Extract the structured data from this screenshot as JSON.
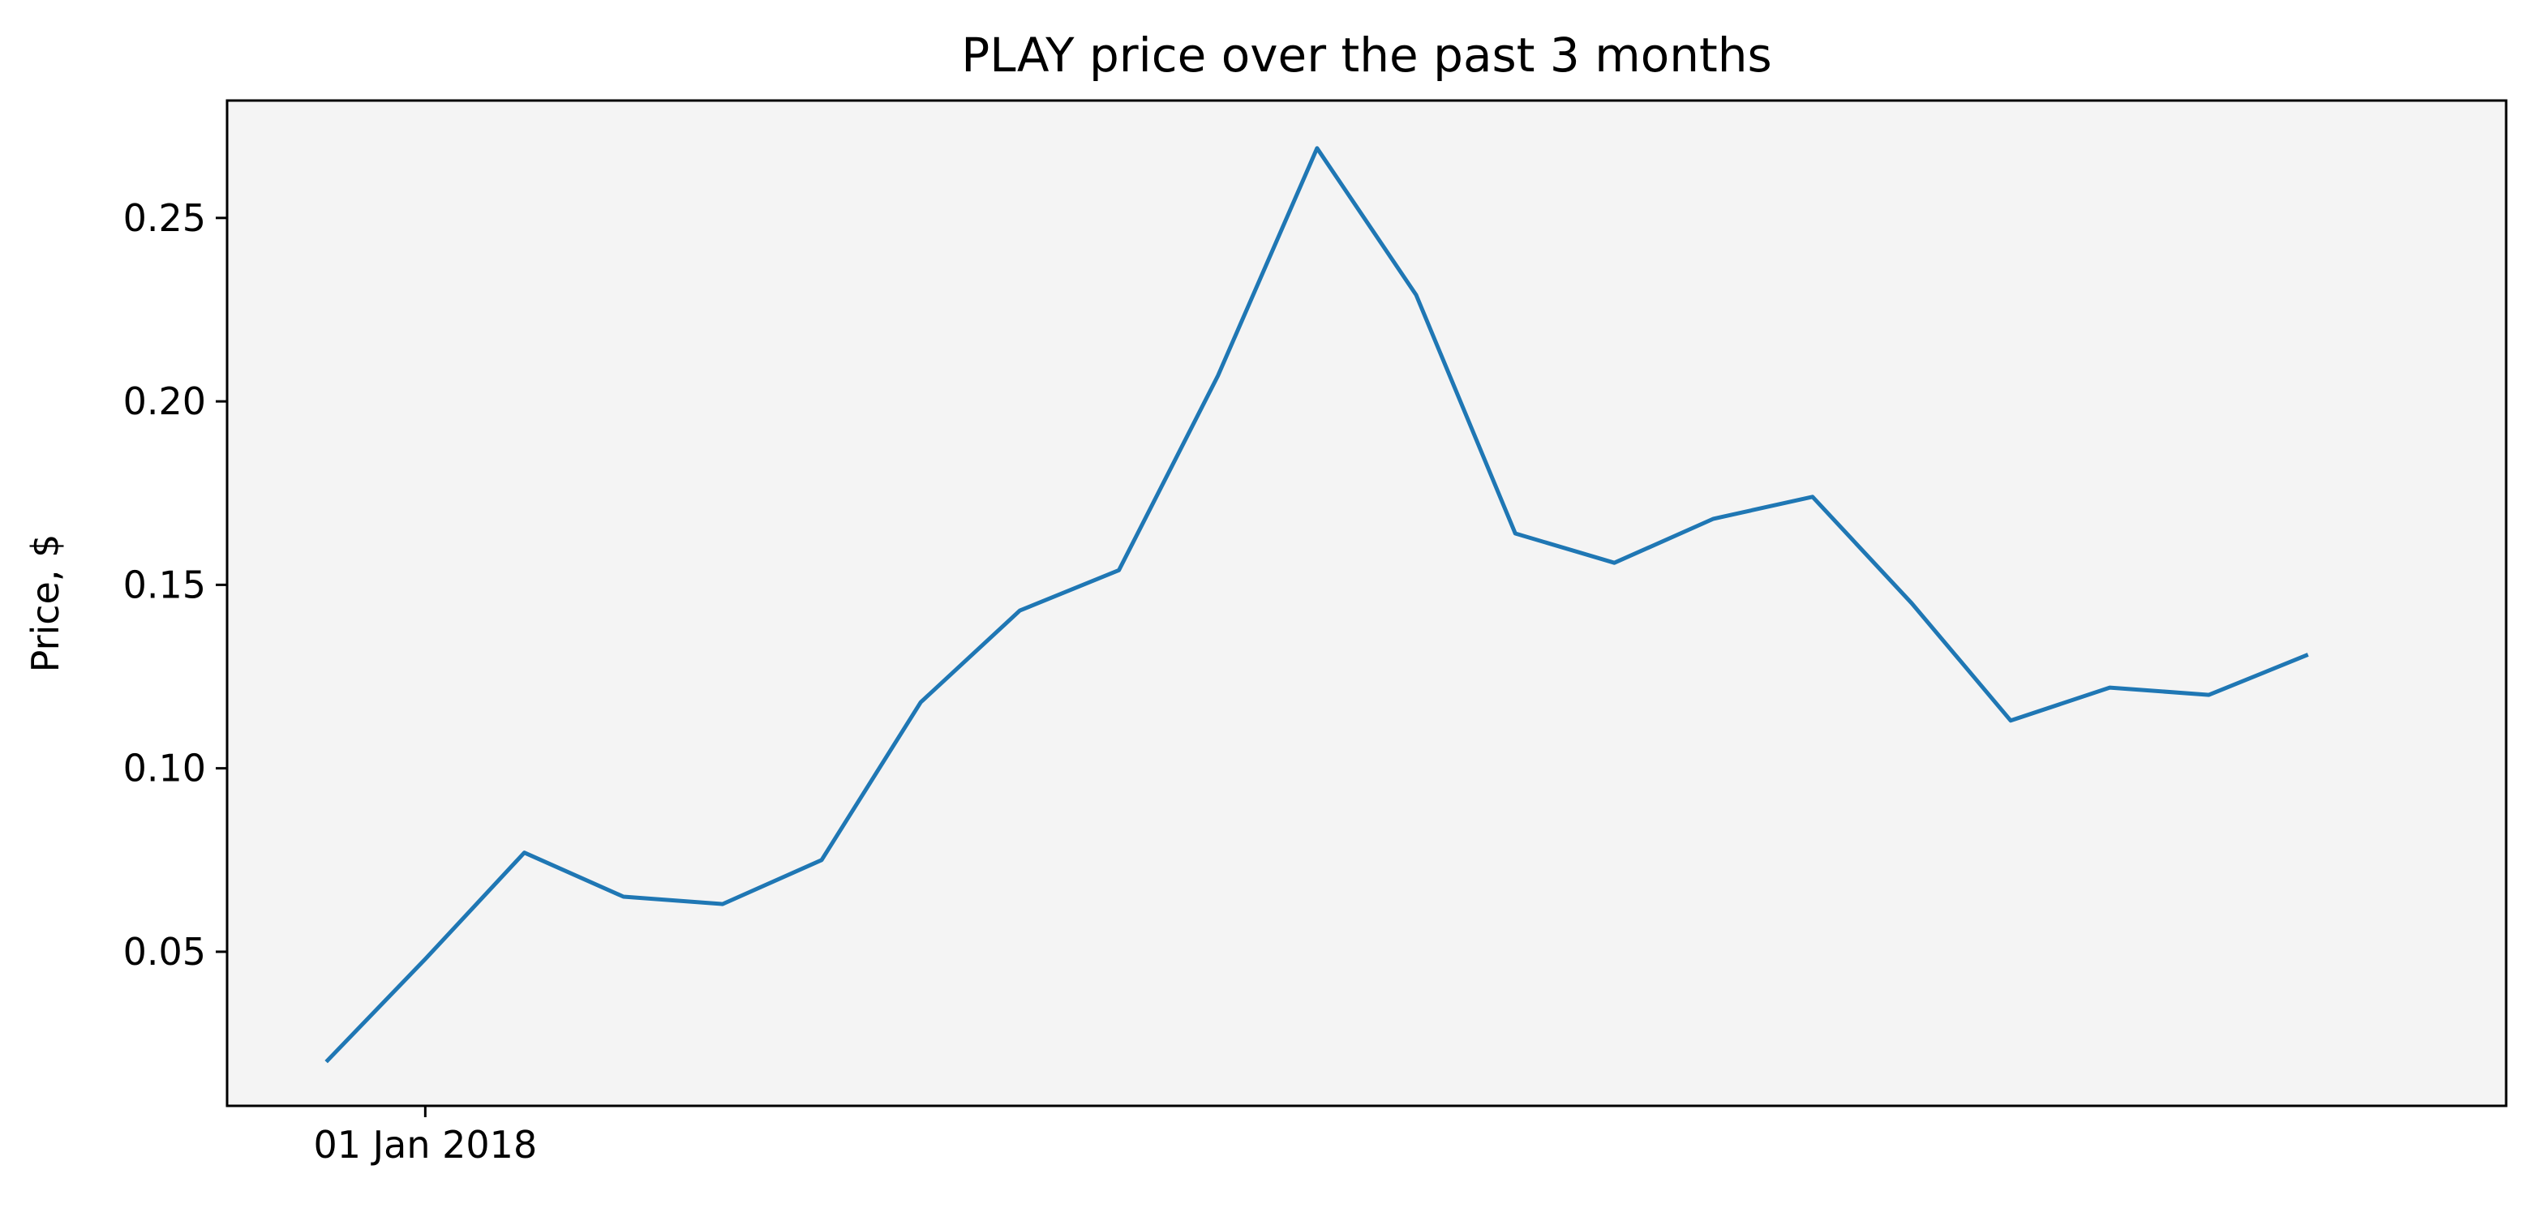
{
  "chart_data": {
    "type": "line",
    "title": "PLAY price over the past 3 months",
    "xlabel": "",
    "ylabel": "Price, $",
    "x": [
      "2017-12-27",
      "2018-01-01",
      "2018-01-06",
      "2018-01-11",
      "2018-01-16",
      "2018-01-21",
      "2018-01-26",
      "2018-01-31",
      "2018-02-05",
      "2018-02-10",
      "2018-02-15",
      "2018-02-20",
      "2018-02-25",
      "2018-03-02",
      "2018-03-07",
      "2018-03-12",
      "2018-03-17",
      "2018-03-22",
      "2018-03-27",
      "2018-04-01",
      "2018-04-06",
      "2018-04-11"
    ],
    "series": [
      {
        "values": [
          0.02,
          0.048,
          0.077,
          0.065,
          0.063,
          0.075,
          0.118,
          0.143,
          0.154,
          0.207,
          0.269,
          0.229,
          0.164,
          0.156,
          0.168,
          0.174,
          0.145,
          0.113,
          0.122,
          0.12,
          0.131,
          null
        ]
      }
    ],
    "x_ticks": [
      {
        "date": "2018-01-01",
        "label": "01 Jan 2018"
      }
    ],
    "xlim": [
      "2017-12-22",
      "2018-04-16"
    ],
    "y_ticks": [
      0.05,
      0.1,
      0.15,
      0.2,
      0.25
    ],
    "y_tick_labels": [
      "0.05",
      "0.10",
      "0.15",
      "0.20",
      "0.25"
    ],
    "ylim": [
      0.008,
      0.282
    ],
    "grid": false,
    "colors": {
      "line": "#1f77b4",
      "plot_background": "#f4f4f4",
      "frame": "#000000"
    }
  }
}
